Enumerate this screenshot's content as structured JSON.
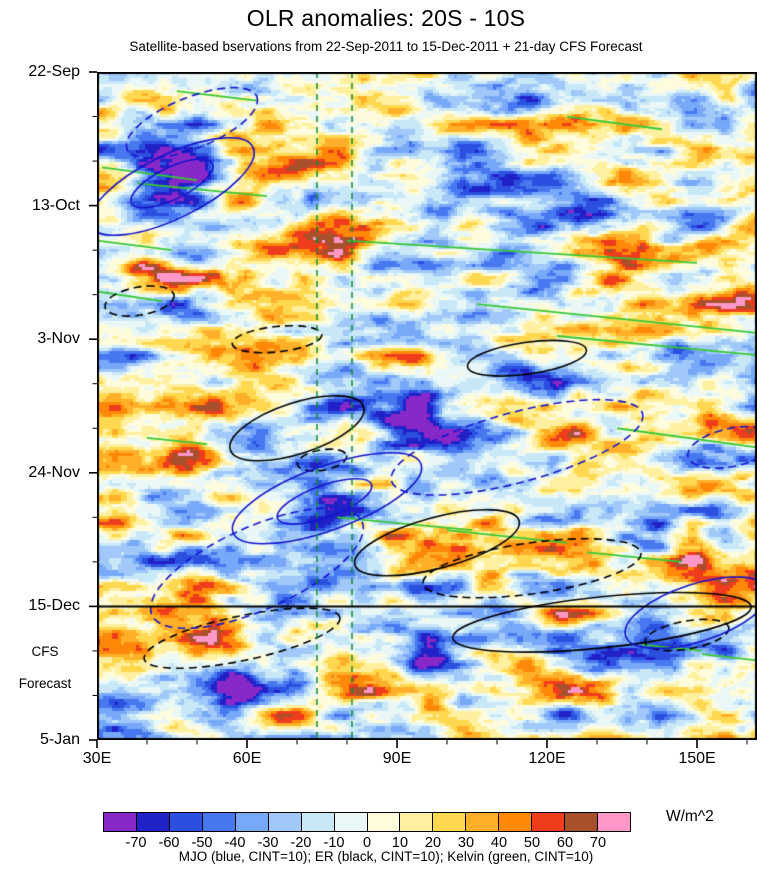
{
  "title": "OLR anomalies: 20S - 10S",
  "subtitle": "Satellite-based bservations from 22-Sep-2011 to 15-Dec-2011 + 21-day CFS Forecast",
  "forecast_annotation": {
    "line1": "CFS",
    "line2": "Forecast"
  },
  "legend_text": "MJO (blue, CINT=10); ER (black, CINT=10); Kelvin (green, CINT=10)",
  "chart_data": {
    "type": "heatmap",
    "title": "OLR anomalies: 20S - 10S",
    "subtitle": "Satellite-based bservations from 22-Sep-2011 to 15-Dec-2011 + 21-day CFS Forecast",
    "x_axis": {
      "tick_labels": [
        "30E",
        "60E",
        "90E",
        "120E",
        "150E"
      ],
      "tick_values": [
        30,
        60,
        90,
        120,
        150
      ],
      "minor_tick_step": 10,
      "range_lon": [
        30,
        162
      ]
    },
    "y_axis": {
      "tick_labels": [
        "22-Sep",
        "13-Oct",
        "3-Nov",
        "24-Nov",
        "15-Dec",
        "5-Jan"
      ],
      "tick_days": [
        0,
        21,
        42,
        63,
        84,
        105
      ],
      "minor_tick_step": 7,
      "range_days": [
        0,
        105
      ],
      "direction": "time-downward"
    },
    "colorbar": {
      "units": "W/m^2",
      "tick_labels": [
        "-70",
        "-60",
        "-50",
        "-40",
        "-30",
        "-20",
        "-10",
        "0",
        "10",
        "20",
        "30",
        "40",
        "50",
        "60",
        "70"
      ],
      "levels": [
        -70,
        -60,
        -50,
        -40,
        -30,
        -20,
        -10,
        0,
        10,
        20,
        30,
        40,
        50,
        60,
        70
      ],
      "colors": [
        "#8928C8",
        "#2121C8",
        "#2B50E0",
        "#4878F0",
        "#78A8F8",
        "#A0C8F8",
        "#C8E8F8",
        "#EAF7F7",
        "#FFFCDE",
        "#FFF0A0",
        "#FFD84F",
        "#FFB028",
        "#FF8808",
        "#EE3C1C",
        "#A8502C",
        "#FF98C8"
      ]
    },
    "reference_lines": {
      "forecast_start_day": 84,
      "forecast_start_label": "15-Dec",
      "forecast_line_color": "#000000",
      "vertical_lines_lon": [
        74,
        81
      ],
      "vertical_line_color": "#0E8A2E"
    },
    "overlays": {
      "mjo": {
        "label": "MJO",
        "color": "#1414CC",
        "cint": 10,
        "ellipses": [
          {
            "style": "dashed",
            "lon": 49,
            "day": 8,
            "rlon": 14,
            "rday": 4,
            "rot": -22
          },
          {
            "style": "solid",
            "lon": 45,
            "day": 18,
            "rlon": 18,
            "rday": 5,
            "rot": -26
          },
          {
            "style": "solid",
            "lon": 45,
            "day": 17.5,
            "rlon": 9,
            "rday": 2.5,
            "rot": -26
          },
          {
            "style": "solid",
            "lon": 76,
            "day": 67,
            "rlon": 20,
            "rday": 5,
            "rot": -20
          },
          {
            "style": "solid",
            "lon": 75.5,
            "day": 67.5,
            "rlon": 10,
            "rday": 2.5,
            "rot": -20
          },
          {
            "style": "dashed",
            "lon": 114,
            "day": 59,
            "rlon": 26,
            "rday": 5.5,
            "rot": -15
          },
          {
            "style": "dashed",
            "lon": 62,
            "day": 78,
            "rlon": 23,
            "rday": 6.5,
            "rot": -24
          },
          {
            "style": "solid",
            "lon": 150,
            "day": 85,
            "rlon": 15,
            "rday": 4.5,
            "rot": -18
          },
          {
            "style": "dashed",
            "lon": 157,
            "day": 59,
            "rlon": 9,
            "rday": 3,
            "rot": -12
          }
        ]
      },
      "er": {
        "label": "ER",
        "color": "#000000",
        "cint": 10,
        "ellipses": [
          {
            "style": "dashed",
            "lon": 38.5,
            "day": 36,
            "rlon": 7,
            "rday": 2.2,
            "rot": -10
          },
          {
            "style": "dashed",
            "lon": 66,
            "day": 42,
            "rlon": 9,
            "rday": 2,
            "rot": -6
          },
          {
            "style": "solid",
            "lon": 70,
            "day": 56,
            "rlon": 14,
            "rday": 4,
            "rot": -18
          },
          {
            "style": "solid",
            "lon": 116,
            "day": 45,
            "rlon": 12,
            "rday": 2.5,
            "rot": -8
          },
          {
            "style": "dashed",
            "lon": 75,
            "day": 61,
            "rlon": 5,
            "rday": 1.6,
            "rot": -10
          },
          {
            "style": "solid",
            "lon": 98,
            "day": 74,
            "rlon": 17,
            "rday": 4,
            "rot": -15
          },
          {
            "style": "dashed",
            "lon": 117,
            "day": 78,
            "rlon": 22,
            "rday": 4,
            "rot": -8
          },
          {
            "style": "dashed",
            "lon": 59,
            "day": 89,
            "rlon": 20,
            "rday": 3.5,
            "rot": -12
          },
          {
            "style": "solid",
            "lon": 131,
            "day": 86.5,
            "rlon": 30,
            "rday": 4,
            "rot": -6
          },
          {
            "style": "dashed",
            "lon": 148,
            "day": 88.5,
            "rlon": 8.5,
            "rday": 2.2,
            "rot": -10
          }
        ]
      },
      "kelvin": {
        "label": "Kelvin",
        "color": "#38C838",
        "cint": 10,
        "lines": [
          {
            "lon1": 46,
            "day1": 3,
            "lon2": 62,
            "day2": 4.5
          },
          {
            "lon1": 124,
            "day1": 7,
            "lon2": 143,
            "day2": 9
          },
          {
            "lon1": 31,
            "day1": 15,
            "lon2": 50,
            "day2": 17
          },
          {
            "lon1": 38,
            "day1": 17.5,
            "lon2": 64,
            "day2": 19.5
          },
          {
            "lon1": 30,
            "day1": 26.5,
            "lon2": 45,
            "day2": 28
          },
          {
            "lon1": 80,
            "day1": 26.5,
            "lon2": 150,
            "day2": 30
          },
          {
            "lon1": 30,
            "day1": 34.5,
            "lon2": 43,
            "day2": 36
          },
          {
            "lon1": 106,
            "day1": 36.5,
            "lon2": 162,
            "day2": 41
          },
          {
            "lon1": 122,
            "day1": 41.5,
            "lon2": 162,
            "day2": 44.5
          },
          {
            "lon1": 40,
            "day1": 57.5,
            "lon2": 52,
            "day2": 58.5
          },
          {
            "lon1": 134,
            "day1": 56,
            "lon2": 162,
            "day2": 59
          },
          {
            "lon1": 78,
            "day1": 70,
            "lon2": 105,
            "day2": 72
          },
          {
            "lon1": 100,
            "day1": 72,
            "lon2": 124,
            "day2": 74
          },
          {
            "lon1": 128,
            "day1": 75.5,
            "lon2": 147,
            "day2": 77
          },
          {
            "lon1": 139,
            "day1": 90,
            "lon2": 151,
            "day2": 91
          },
          {
            "lon1": 151,
            "day1": 91.5,
            "lon2": 162,
            "day2": 92.5
          }
        ]
      }
    },
    "field": {
      "units": "W/m^2",
      "value_range": [
        -80,
        80
      ],
      "notable_anomalies": [
        {
          "lon": 45,
          "day": 17,
          "amplitude": -70,
          "lon_sigma": 8,
          "day_sigma": 5
        },
        {
          "lon": 128,
          "day": 20,
          "amplitude": -65,
          "lon_sigma": 9,
          "day_sigma": 4
        },
        {
          "lon": 150,
          "day": 21,
          "amplitude": -55,
          "lon_sigma": 6,
          "day_sigma": 4
        },
        {
          "lon": 75,
          "day": 26,
          "amplitude": 50,
          "lon_sigma": 16,
          "day_sigma": 4
        },
        {
          "lon": 40,
          "day": 30,
          "amplitude": 50,
          "lon_sigma": 8,
          "day_sigma": 4
        },
        {
          "lon": 95,
          "day": 52,
          "amplitude": -50,
          "lon_sigma": 9,
          "day_sigma": 6
        },
        {
          "lon": 120,
          "day": 45,
          "amplitude": -45,
          "lon_sigma": 8,
          "day_sigma": 4
        },
        {
          "lon": 75,
          "day": 68,
          "amplitude": -60,
          "lon_sigma": 8,
          "day_sigma": 5
        },
        {
          "lon": 33,
          "day": 72,
          "amplitude": 65,
          "lon_sigma": 5,
          "day_sigma": 4
        },
        {
          "lon": 150,
          "day": 75,
          "amplitude": 60,
          "lon_sigma": 6,
          "day_sigma": 4
        },
        {
          "lon": 57,
          "day": 97,
          "amplitude": -55,
          "lon_sigma": 8,
          "day_sigma": 5
        },
        {
          "lon": 95,
          "day": 90,
          "amplitude": -45,
          "lon_sigma": 7,
          "day_sigma": 4
        }
      ]
    }
  }
}
